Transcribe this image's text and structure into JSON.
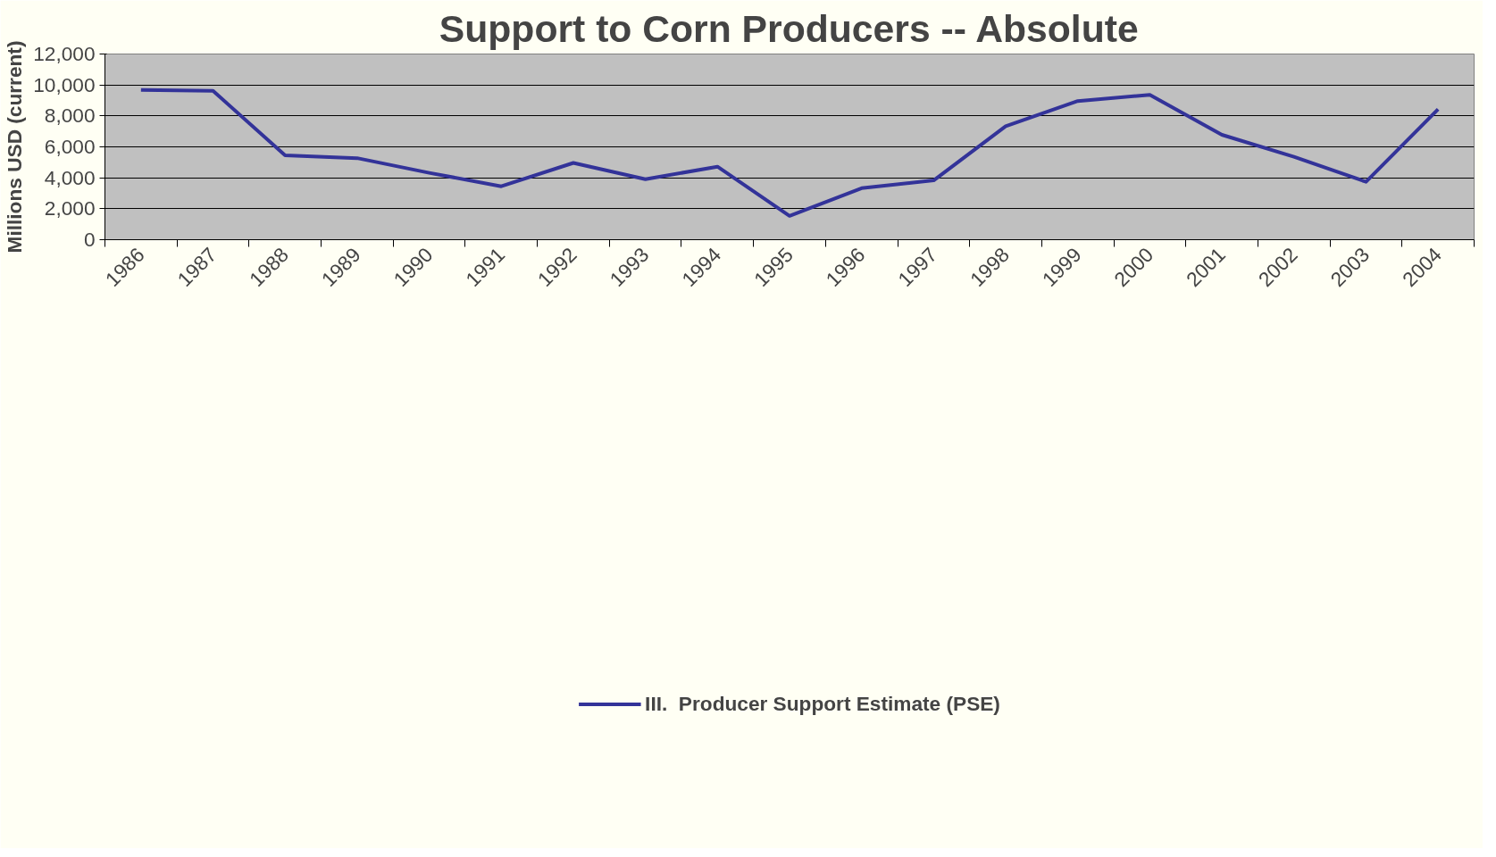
{
  "chart_data": {
    "type": "line",
    "title": "Support to Corn Producers -- Absolute",
    "ylabel": "Millions USD (current)",
    "categories": [
      "1986",
      "1987",
      "1988",
      "1989",
      "1990",
      "1991",
      "1992",
      "1993",
      "1994",
      "1995",
      "1996",
      "1997",
      "1998",
      "1999",
      "2000",
      "2001",
      "2002",
      "2003",
      "2004"
    ],
    "series": [
      {
        "name": "III.  Producer Support Estimate (PSE)",
        "color": "#333399",
        "values": [
          9680,
          9620,
          5450,
          5270,
          4320,
          3450,
          4960,
          3910,
          4720,
          1540,
          3330,
          3830,
          7330,
          8960,
          9360,
          6780,
          5360,
          3740,
          8430
        ]
      }
    ],
    "ylim": [
      0,
      12000
    ],
    "yticks": [
      {
        "value": 0,
        "label": "0"
      },
      {
        "value": 2000,
        "label": "2,000"
      },
      {
        "value": 4000,
        "label": "4,000"
      },
      {
        "value": 6000,
        "label": "6,000"
      },
      {
        "value": 8000,
        "label": "8,000"
      },
      {
        "value": 10000,
        "label": "10,000"
      },
      {
        "value": 12000,
        "label": "12,000"
      }
    ],
    "grid": "y",
    "legend": "bottom",
    "marker": "none",
    "line_style": "solid"
  }
}
